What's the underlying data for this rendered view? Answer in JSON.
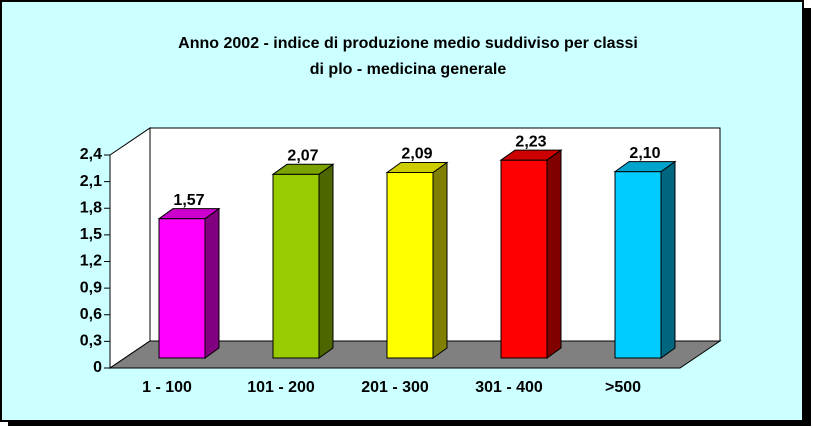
{
  "chart_data": {
    "type": "bar3d",
    "title": [
      "Anno 2002 - indice di produzione medio suddiviso per classi",
      "di plo - medicina generale"
    ],
    "categories": [
      "1 - 100",
      "101 - 200",
      "201 - 300",
      "301 - 400",
      ">500"
    ],
    "values": [
      1.57,
      2.07,
      2.09,
      2.23,
      2.1
    ],
    "value_labels": [
      "1,57",
      "2,07",
      "2,09",
      "2,23",
      "2,10"
    ],
    "colors": [
      "#ff00ff",
      "#99cc00",
      "#ffff00",
      "#ff0000",
      "#00ccff"
    ],
    "ylim": [
      0,
      2.4
    ],
    "yticks": [
      0,
      {
        "value": 0.3,
        "label": "0,3"
      },
      {
        "value": 0.6,
        "label": "0,6"
      },
      {
        "value": 0.9,
        "label": "0,9"
      },
      {
        "value": 1.2,
        "label": "1,2"
      },
      {
        "value": 1.5,
        "label": "1,5"
      },
      {
        "value": 1.8,
        "label": "1,8"
      },
      {
        "value": 2.1,
        "label": "2,1"
      },
      {
        "value": 2.4,
        "label": "2,4"
      }
    ]
  }
}
